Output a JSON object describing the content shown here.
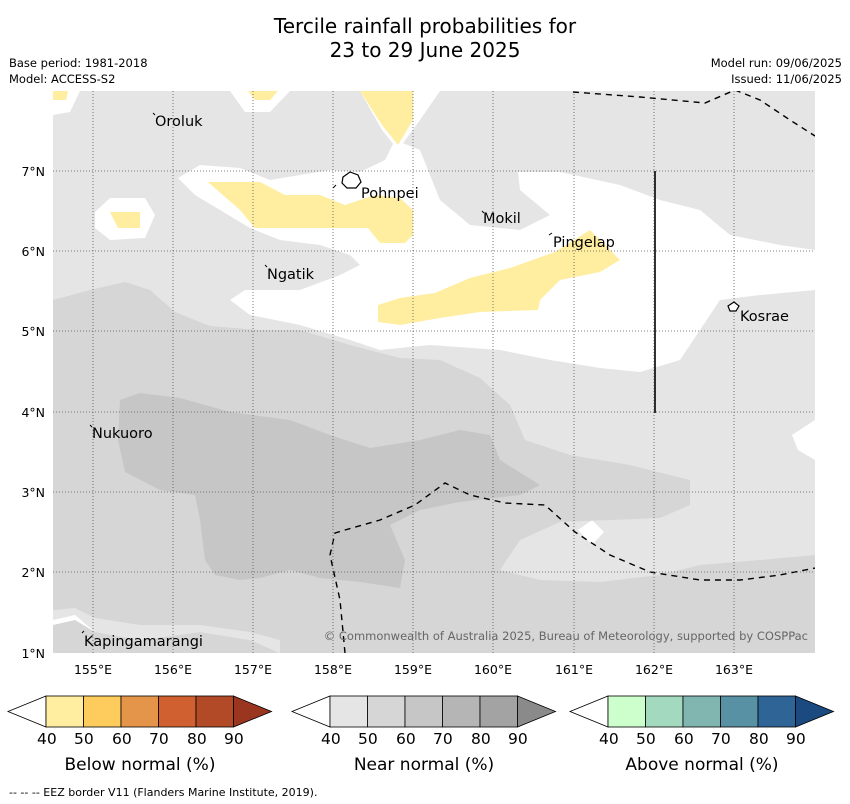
{
  "title_line1": "Tercile rainfall probabilities for",
  "title_line2": "23 to 29 June 2025",
  "base_period": "Base period: 1981-2018",
  "model": "Model: ACCESS-S2",
  "model_run": "Model run: 09/06/2025",
  "issued": "Issued: 11/06/2025",
  "copyright": "© Commonwealth of Australia 2025, Bureau of Meteorology, supported by COSPPac",
  "footnote": "-- -- -- EEZ border V11 (Flanders Marine Institute, 2019).",
  "lat_labels": [
    "7°N",
    "6°N",
    "5°N",
    "4°N",
    "3°N",
    "2°N",
    "1°N"
  ],
  "lon_labels": [
    "155°E",
    "156°E",
    "157°E",
    "158°E",
    "159°E",
    "160°E",
    "161°E",
    "162°E",
    "163°E"
  ],
  "places": [
    "Oroluk",
    "Pohnpei",
    "Mokil",
    "Pingelap",
    "Ngatik",
    "Kosrae",
    "Nukuoro",
    "Kapingamarangi"
  ],
  "colorbars": [
    {
      "label": "Below normal (%)",
      "ticks": [
        "40",
        "50",
        "60",
        "70",
        "80",
        "90"
      ],
      "colors": [
        "#ffffff",
        "#ffeda0",
        "#fecc5c",
        "#e4954a",
        "#d06030",
        "#b24a28",
        "#9a3620"
      ]
    },
    {
      "label": "Near normal (%)",
      "ticks": [
        "40",
        "50",
        "60",
        "70",
        "80",
        "90"
      ],
      "colors": [
        "#ffffff",
        "#e5e5e5",
        "#d6d6d6",
        "#c6c6c6",
        "#b5b5b5",
        "#a3a3a3",
        "#8a8a8a"
      ]
    },
    {
      "label": "Above normal (%)",
      "ticks": [
        "40",
        "50",
        "60",
        "70",
        "80",
        "90"
      ],
      "colors": [
        "#ffffff",
        "#ccffcc",
        "#a3d9be",
        "#80b5b0",
        "#5891a3",
        "#2f6496",
        "#1a4a80"
      ]
    }
  ]
}
